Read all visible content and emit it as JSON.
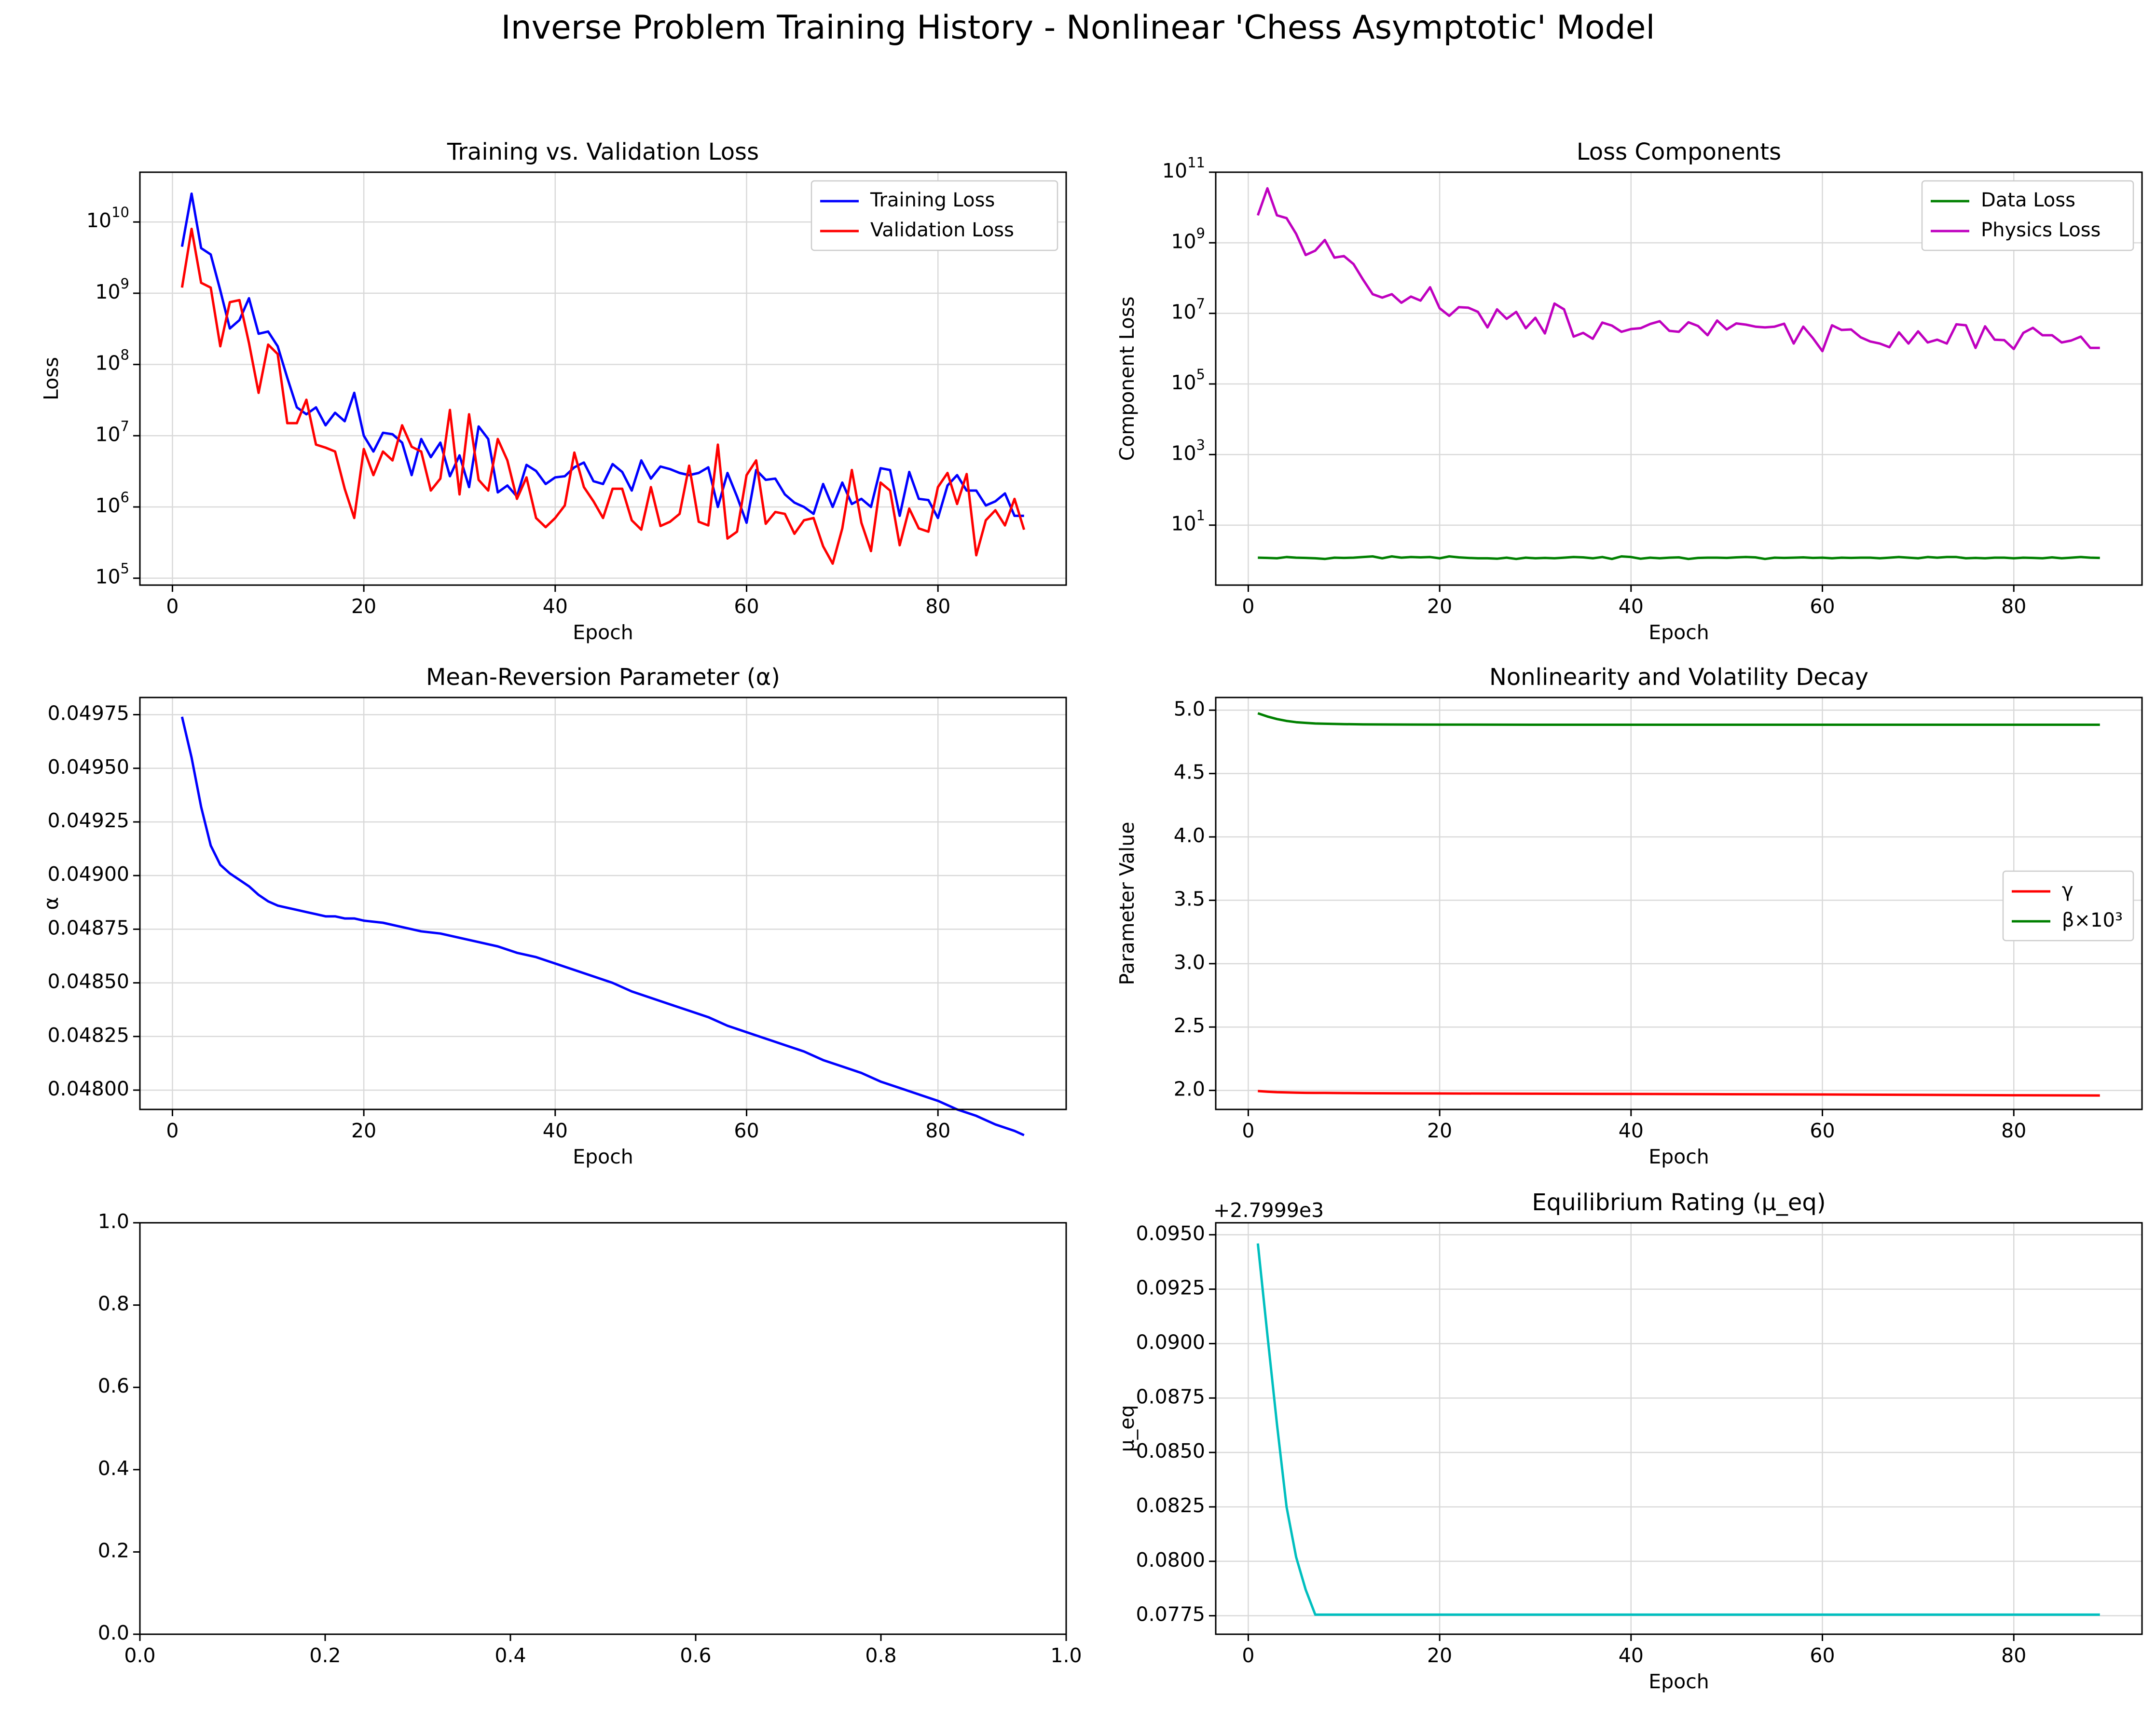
{
  "figure_title": "Inverse Problem Training History - Nonlinear 'Chess Asymptotic' Model",
  "chart_data": [
    {
      "id": "loss",
      "type": "line",
      "title": "Training vs. Validation Loss",
      "xlabel": "Epoch",
      "ylabel": "Loss",
      "yscale": "log",
      "xlim": [
        -3.4,
        93.4
      ],
      "ylim": [
        80000,
        50000000000
      ],
      "xticks": [
        0,
        20,
        40,
        60,
        80
      ],
      "yticks": [
        {
          "v": 100000,
          "e": "5"
        },
        {
          "v": 1000000,
          "e": "6"
        },
        {
          "v": 10000000,
          "e": "7"
        },
        {
          "v": 100000000,
          "e": "8"
        },
        {
          "v": 1000000000,
          "e": "9"
        },
        {
          "v": 10000000000,
          "e": "10"
        }
      ],
      "grid": true,
      "legend": "upper right",
      "x": [
        1,
        2,
        3,
        4,
        5,
        6,
        7,
        8,
        9,
        10,
        11,
        12,
        13,
        14,
        15,
        16,
        17,
        18,
        19,
        20,
        21,
        22,
        23,
        24,
        25,
        26,
        27,
        28,
        29,
        30,
        31,
        32,
        33,
        34,
        35,
        36,
        37,
        38,
        39,
        40,
        41,
        42,
        43,
        44,
        45,
        46,
        47,
        48,
        49,
        50,
        51,
        52,
        53,
        54,
        55,
        56,
        57,
        58,
        59,
        60,
        61,
        62,
        63,
        64,
        65,
        66,
        67,
        68,
        69,
        70,
        71,
        72,
        73,
        74,
        75,
        76,
        77,
        78,
        79,
        80,
        81,
        82,
        83,
        84,
        85,
        86,
        87,
        88,
        89
      ],
      "series": [
        {
          "name": "Training Loss",
          "color": "#0000ff",
          "values": [
            4500000000.0,
            25000000000.0,
            4300000000.0,
            3500000000.0,
            1100000000.0,
            320000000.0,
            420000000.0,
            850000000.0,
            270000000.0,
            290000000.0,
            180000000.0,
            65000000.0,
            25000000.0,
            20000000.0,
            25000000.0,
            14000000.0,
            21000000.0,
            16000000.0,
            40000000.0,
            10000000.0,
            6000000.0,
            11000000.0,
            10500000.0,
            8000000.0,
            2800000.0,
            9000000.0,
            5000000.0,
            8000000.0,
            2700000.0,
            5300000.0,
            1900000.0,
            13500000.0,
            9000000.0,
            1600000.0,
            2000000.0,
            1400000.0,
            3900000.0,
            3200000.0,
            2100000.0,
            2600000.0,
            2700000.0,
            3600000.0,
            4200000.0,
            2300000.0,
            2100000.0,
            4000000.0,
            3100000.0,
            1700000.0,
            4500000.0,
            2500000.0,
            3700000.0,
            3400000.0,
            3000000.0,
            2800000.0,
            3000000.0,
            3600000.0,
            1000000.0,
            3000000.0,
            1400000.0,
            600000.0,
            3300000.0,
            2400000.0,
            2500000.0,
            1500000.0,
            1150000.0,
            1000000.0,
            800000.0,
            2100000.0,
            1000000.0,
            2200000.0,
            1100000.0,
            1300000.0,
            1000000.0,
            3500000.0,
            3300000.0,
            750000.0,
            3100000.0,
            1300000.0,
            1250000.0,
            700000.0,
            2000000.0,
            2800000.0,
            1700000.0,
            1700000.0,
            1050000.0,
            1200000.0,
            1550000.0,
            750000.0,
            750000.0
          ]
        },
        {
          "name": "Validation Loss",
          "color": "#ff0000",
          "values": [
            1200000000.0,
            8000000000.0,
            1400000000.0,
            1200000000.0,
            180000000.0,
            750000000.0,
            800000000.0,
            200000000.0,
            40000000.0,
            190000000.0,
            140000000.0,
            15000000.0,
            15000000.0,
            32000000.0,
            7500000.0,
            6800000.0,
            6000000.0,
            1800000.0,
            700000.0,
            6500000.0,
            2800000.0,
            6000000.0,
            4500000.0,
            14000000.0,
            7000000.0,
            6000000.0,
            1700000.0,
            2500000.0,
            23000000.0,
            1500000.0,
            20000000.0,
            2400000.0,
            1700000.0,
            9000000.0,
            4500000.0,
            1300000.0,
            2600000.0,
            700000.0,
            520000.0,
            700000.0,
            1050000.0,
            5800000.0,
            1900000.0,
            1200000.0,
            700000.0,
            1800000.0,
            1800000.0,
            650000.0,
            480000.0,
            1900000.0,
            540000.0,
            620000.0,
            800000.0,
            3800000.0,
            620000.0,
            550000.0,
            7500000.0,
            360000.0,
            450000.0,
            2800000.0,
            4500000.0,
            580000.0,
            850000.0,
            800000.0,
            420000.0,
            650000.0,
            700000.0,
            280000.0,
            160000.0,
            500000.0,
            3300000.0,
            600000.0,
            240000.0,
            2200000.0,
            1700000.0,
            290000.0,
            950000.0,
            500000.0,
            450000.0,
            1900000.0,
            3000000.0,
            1100000.0,
            2900000.0,
            210000.0,
            650000.0,
            900000.0,
            550000.0,
            1300000.0,
            480000.0
          ]
        }
      ]
    },
    {
      "id": "components",
      "type": "line",
      "title": "Loss Components",
      "xlabel": "Epoch",
      "ylabel": "Component Loss",
      "yscale": "log",
      "xlim": [
        -3.4,
        93.4
      ],
      "ylim": [
        0.2,
        100000000000
      ],
      "xticks": [
        0,
        20,
        40,
        60,
        80
      ],
      "yticks": [
        {
          "v": 10,
          "e": "1"
        },
        {
          "v": 1000,
          "e": "3"
        },
        {
          "v": 100000,
          "e": "5"
        },
        {
          "v": 10000000,
          "e": "7"
        },
        {
          "v": 1000000000,
          "e": "9"
        },
        {
          "v": 100000000000,
          "e": "11"
        }
      ],
      "grid": true,
      "legend": "upper right",
      "x": [
        1,
        2,
        3,
        4,
        5,
        6,
        7,
        8,
        9,
        10,
        11,
        12,
        13,
        14,
        15,
        16,
        17,
        18,
        19,
        20,
        21,
        22,
        23,
        24,
        25,
        26,
        27,
        28,
        29,
        30,
        31,
        32,
        33,
        34,
        35,
        36,
        37,
        38,
        39,
        40,
        41,
        42,
        43,
        44,
        45,
        46,
        47,
        48,
        49,
        50,
        51,
        52,
        53,
        54,
        55,
        56,
        57,
        58,
        59,
        60,
        61,
        62,
        63,
        64,
        65,
        66,
        67,
        68,
        69,
        70,
        71,
        72,
        73,
        74,
        75,
        76,
        77,
        78,
        79,
        80,
        81,
        82,
        83,
        84,
        85,
        86,
        87,
        88,
        89
      ],
      "series": [
        {
          "name": "Data Loss",
          "color": "#008000",
          "values": [
            1.2,
            1.18,
            1.15,
            1.25,
            1.2,
            1.18,
            1.15,
            1.1,
            1.2,
            1.18,
            1.2,
            1.25,
            1.3,
            1.15,
            1.3,
            1.2,
            1.25,
            1.22,
            1.25,
            1.15,
            1.3,
            1.22,
            1.18,
            1.15,
            1.15,
            1.12,
            1.2,
            1.1,
            1.2,
            1.15,
            1.18,
            1.15,
            1.2,
            1.25,
            1.22,
            1.15,
            1.25,
            1.1,
            1.3,
            1.25,
            1.12,
            1.2,
            1.15,
            1.2,
            1.22,
            1.1,
            1.18,
            1.2,
            1.2,
            1.18,
            1.22,
            1.25,
            1.22,
            1.1,
            1.2,
            1.18,
            1.2,
            1.22,
            1.18,
            1.2,
            1.15,
            1.2,
            1.18,
            1.2,
            1.2,
            1.15,
            1.2,
            1.25,
            1.2,
            1.15,
            1.25,
            1.2,
            1.25,
            1.25,
            1.15,
            1.18,
            1.15,
            1.2,
            1.2,
            1.15,
            1.2,
            1.18,
            1.15,
            1.22,
            1.15,
            1.2,
            1.25,
            1.2,
            1.18
          ]
        },
        {
          "name": "Physics Loss",
          "color": "#bf00bf",
          "values": [
            6000000000.0,
            35000000000.0,
            6000000000.0,
            5000000000.0,
            1800000000.0,
            450000000.0,
            600000000.0,
            1200000000.0,
            380000000.0,
            420000000.0,
            250000000.0,
            90000000.0,
            35000000.0,
            28000000.0,
            35000000.0,
            20000000.0,
            30000000.0,
            23000000.0,
            55000000.0,
            14000000.0,
            8500000.0,
            15000000.0,
            14500000.0,
            11000000.0,
            4000000.0,
            13000000.0,
            7000000.0,
            11000000.0,
            3800000.0,
            7500000.0,
            2700000.0,
            19000000.0,
            13000000.0,
            2200000.0,
            2800000.0,
            1900000.0,
            5500000.0,
            4500000.0,
            3000000.0,
            3600000.0,
            3800000.0,
            5000000.0,
            6000000.0,
            3200000.0,
            3000000.0,
            5600000.0,
            4400000.0,
            2400000.0,
            6300000.0,
            3500000.0,
            5200000.0,
            4800000.0,
            4200000.0,
            4000000.0,
            4200000.0,
            5100000.0,
            1400000.0,
            4200000.0,
            2000000.0,
            850000.0,
            4600000.0,
            3400000.0,
            3500000.0,
            2100000.0,
            1600000.0,
            1400000.0,
            1100000.0,
            2900000.0,
            1400000.0,
            3100000.0,
            1500000.0,
            1800000.0,
            1400000.0,
            4900000.0,
            4600000.0,
            1050000.0,
            4300000.0,
            1800000.0,
            1750000.0,
            980000.0,
            2800000.0,
            3900000.0,
            2400000.0,
            2400000.0,
            1500000.0,
            1700000.0,
            2200000.0,
            1050000.0,
            1050000.0
          ]
        }
      ]
    },
    {
      "id": "alpha",
      "type": "line",
      "title": "Mean-Reversion Parameter (α)",
      "xlabel": "Epoch",
      "ylabel": "α",
      "yscale": "linear",
      "xlim": [
        -3.4,
        93.4
      ],
      "ylim": [
        0.04791,
        0.04983
      ],
      "xticks": [
        0,
        20,
        40,
        60,
        80
      ],
      "yticks": [
        {
          "v": 0.048,
          "t": "0.04800"
        },
        {
          "v": 0.04825,
          "t": "0.04825"
        },
        {
          "v": 0.0485,
          "t": "0.04850"
        },
        {
          "v": 0.04875,
          "t": "0.04875"
        },
        {
          "v": 0.049,
          "t": "0.04900"
        },
        {
          "v": 0.04925,
          "t": "0.04925"
        },
        {
          "v": 0.0495,
          "t": "0.04950"
        },
        {
          "v": 0.04975,
          "t": "0.04975"
        }
      ],
      "grid": true,
      "legend": "none",
      "x": [
        1,
        2,
        3,
        4,
        5,
        6,
        7,
        8,
        9,
        10,
        11,
        12,
        13,
        14,
        15,
        16,
        17,
        18,
        19,
        20,
        22,
        24,
        26,
        28,
        30,
        32,
        34,
        36,
        38,
        40,
        42,
        44,
        46,
        48,
        50,
        52,
        54,
        56,
        58,
        60,
        62,
        64,
        66,
        68,
        70,
        72,
        74,
        76,
        78,
        80,
        82,
        84,
        86,
        88,
        89
      ],
      "series": [
        {
          "name": "",
          "color": "#0000ff",
          "values": [
            0.04974,
            0.04955,
            0.04932,
            0.04914,
            0.04905,
            0.04901,
            0.04898,
            0.04895,
            0.04891,
            0.04888,
            0.04886,
            0.04885,
            0.04884,
            0.04883,
            0.04882,
            0.04881,
            0.04881,
            0.0488,
            0.0488,
            0.04879,
            0.04878,
            0.04876,
            0.04874,
            0.04873,
            0.04871,
            0.04869,
            0.04867,
            0.04864,
            0.04862,
            0.04859,
            0.04856,
            0.04853,
            0.0485,
            0.04846,
            0.04843,
            0.0484,
            0.04837,
            0.04834,
            0.0483,
            0.04827,
            0.04824,
            0.04821,
            0.04818,
            0.04814,
            0.04811,
            0.04808,
            0.04804,
            0.04801,
            0.04798,
            0.04795,
            0.04791,
            0.04788,
            0.04784,
            0.04781,
            0.04779
          ]
        }
      ]
    },
    {
      "id": "nonlinearity",
      "type": "line",
      "title": "Nonlinearity and Volatility Decay",
      "xlabel": "Epoch",
      "ylabel": "Parameter Value",
      "yscale": "linear",
      "xlim": [
        -3.4,
        93.4
      ],
      "ylim": [
        1.85,
        5.1
      ],
      "xticks": [
        0,
        20,
        40,
        60,
        80
      ],
      "yticks": [
        {
          "v": 2.0,
          "t": "2.0"
        },
        {
          "v": 2.5,
          "t": "2.5"
        },
        {
          "v": 3.0,
          "t": "3.0"
        },
        {
          "v": 3.5,
          "t": "3.5"
        },
        {
          "v": 4.0,
          "t": "4.0"
        },
        {
          "v": 4.5,
          "t": "4.5"
        },
        {
          "v": 5.0,
          "t": "5.0"
        }
      ],
      "grid": true,
      "legend": "center right",
      "x": [
        1,
        2,
        3,
        4,
        5,
        6,
        7,
        8,
        10,
        12,
        15,
        20,
        30,
        40,
        50,
        60,
        70,
        80,
        89
      ],
      "series": [
        {
          "name": "γ",
          "color": "#ff0000",
          "values": [
            1.995,
            1.99,
            1.986,
            1.984,
            1.982,
            1.981,
            1.98,
            1.98,
            1.979,
            1.978,
            1.977,
            1.976,
            1.974,
            1.972,
            1.97,
            1.968,
            1.965,
            1.962,
            1.96
          ]
        },
        {
          "name": "β×10³",
          "color": "#008000",
          "values": [
            4.975,
            4.95,
            4.93,
            4.915,
            4.905,
            4.9,
            4.895,
            4.893,
            4.89,
            4.888,
            4.887,
            4.886,
            4.885,
            4.885,
            4.885,
            4.885,
            4.885,
            4.885,
            4.885
          ]
        }
      ]
    },
    {
      "id": "empty",
      "type": "line",
      "title": "",
      "xlabel": "",
      "ylabel": "",
      "yscale": "linear",
      "xlim": [
        0,
        1
      ],
      "ylim": [
        0,
        1
      ],
      "xticks": [
        {
          "v": 0,
          "t": "0.0"
        },
        {
          "v": 0.2,
          "t": "0.2"
        },
        {
          "v": 0.4,
          "t": "0.4"
        },
        {
          "v": 0.6,
          "t": "0.6"
        },
        {
          "v": 0.8,
          "t": "0.8"
        },
        {
          "v": 1,
          "t": "1.0"
        }
      ],
      "yticks": [
        {
          "v": 0,
          "t": "0.0"
        },
        {
          "v": 0.2,
          "t": "0.2"
        },
        {
          "v": 0.4,
          "t": "0.4"
        },
        {
          "v": 0.6,
          "t": "0.6"
        },
        {
          "v": 0.8,
          "t": "0.8"
        },
        {
          "v": 1,
          "t": "1.0"
        }
      ],
      "grid": false,
      "legend": "none",
      "series": []
    },
    {
      "id": "mueq",
      "type": "line",
      "title": "Equilibrium Rating (μ_eq)",
      "xlabel": "Epoch",
      "ylabel": "μ_eq",
      "yscale": "linear",
      "offset_text": "+2.7999e3",
      "xlim": [
        -3.4,
        93.4
      ],
      "ylim": [
        0.07665,
        0.09555
      ],
      "xticks": [
        0,
        20,
        40,
        60,
        80
      ],
      "yticks": [
        {
          "v": 0.0775,
          "t": "0.0775"
        },
        {
          "v": 0.08,
          "t": "0.0800"
        },
        {
          "v": 0.0825,
          "t": "0.0825"
        },
        {
          "v": 0.085,
          "t": "0.0850"
        },
        {
          "v": 0.0875,
          "t": "0.0875"
        },
        {
          "v": 0.09,
          "t": "0.0900"
        },
        {
          "v": 0.0925,
          "t": "0.0925"
        },
        {
          "v": 0.095,
          "t": "0.0950"
        }
      ],
      "grid": true,
      "legend": "none",
      "x": [
        1,
        2,
        3,
        4,
        5,
        6,
        7,
        8,
        89
      ],
      "series": [
        {
          "name": "",
          "color": "#00bfbf",
          "values": [
            0.0946,
            0.0904,
            0.0863,
            0.0825,
            0.0802,
            0.0787,
            0.07755,
            0.07755,
            0.07755
          ]
        }
      ]
    }
  ]
}
